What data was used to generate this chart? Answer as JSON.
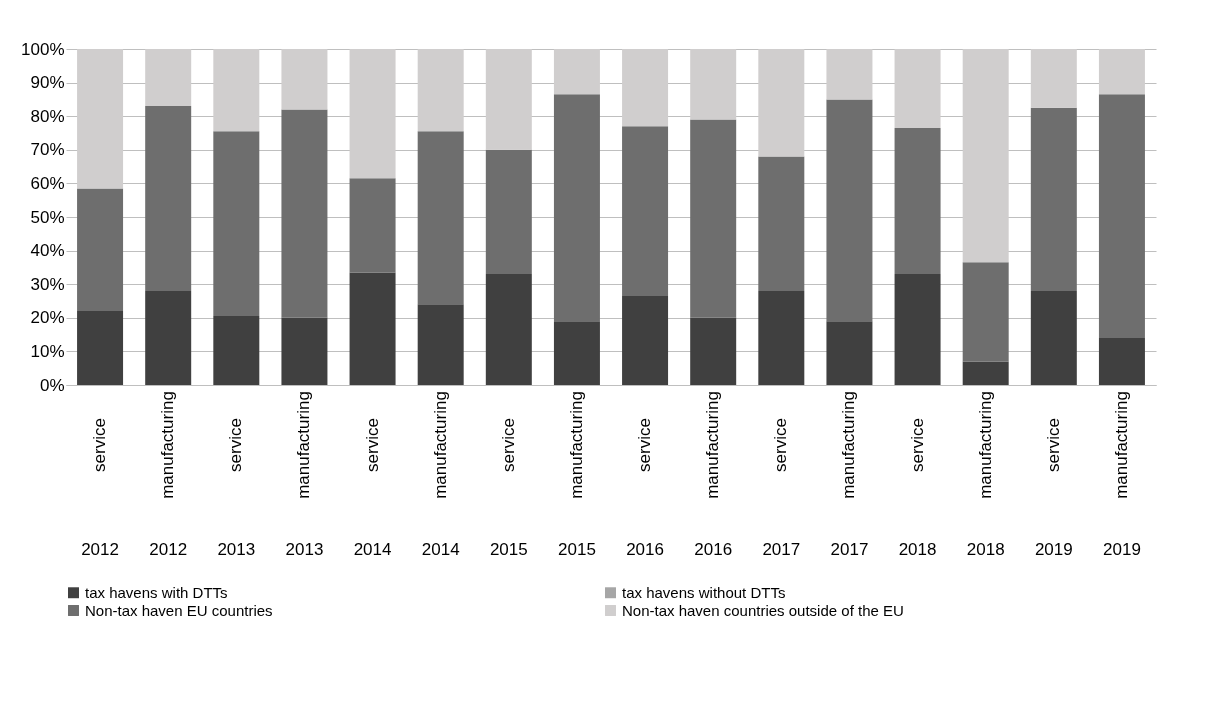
{
  "chart_data": {
    "type": "bar",
    "stacked": true,
    "categories": [
      "service\n2012",
      "manufacturing\n2012",
      "service\n2013",
      "manufacturing\n2013",
      "service\n2014",
      "manufacturing\n2014",
      "service\n2015",
      "manufacturing\n2015",
      "service\n2016",
      "manufacturing\n2016",
      "service\n2017",
      "manufacturing\n2017",
      "service\n2018",
      "manufacturing\n2018",
      "service\n2019",
      "manufacturing\n2019"
    ],
    "series": [
      {
        "name": "tax havens with DTTs",
        "color": "#404040",
        "values": [
          22,
          28,
          20.5,
          20,
          33.5,
          24,
          33,
          19,
          26.5,
          20,
          28,
          19,
          33,
          7,
          28,
          14
        ]
      },
      {
        "name": "tax havens without DTTs",
        "color": "#a6a6a6",
        "values": [
          0,
          0,
          0,
          0,
          0,
          0,
          0,
          0,
          0,
          0,
          0,
          0,
          0,
          0,
          0,
          0
        ]
      },
      {
        "name": "Non-tax haven EU countries",
        "color": "#6e6e6e",
        "values": [
          36.5,
          55,
          55,
          62,
          28,
          51.5,
          37,
          67.5,
          50.5,
          59,
          40,
          66,
          43.5,
          29.5,
          54.5,
          72.5
        ]
      },
      {
        "name": "Non-tax haven countries outside of the EU",
        "color": "#d0cece",
        "values": [
          41.5,
          17,
          24.5,
          18,
          38.5,
          24.5,
          30,
          13.5,
          23,
          21,
          32,
          15,
          23.5,
          63.5,
          17.5,
          13.5
        ]
      }
    ],
    "ylim": [
      0,
      100
    ],
    "yticks": [
      {
        "value": 0,
        "label": "0%"
      },
      {
        "value": 10,
        "label": "10%"
      },
      {
        "value": 20,
        "label": "20%"
      },
      {
        "value": 30,
        "label": "30%"
      },
      {
        "value": 40,
        "label": "40%"
      },
      {
        "value": 50,
        "label": "50%"
      },
      {
        "value": 60,
        "label": "60%"
      },
      {
        "value": 70,
        "label": "70%"
      },
      {
        "value": 80,
        "label": "80%"
      },
      {
        "value": 90,
        "label": "90%"
      },
      {
        "value": 100,
        "label": "100%"
      }
    ],
    "grid": "y",
    "legend": "bottom"
  }
}
